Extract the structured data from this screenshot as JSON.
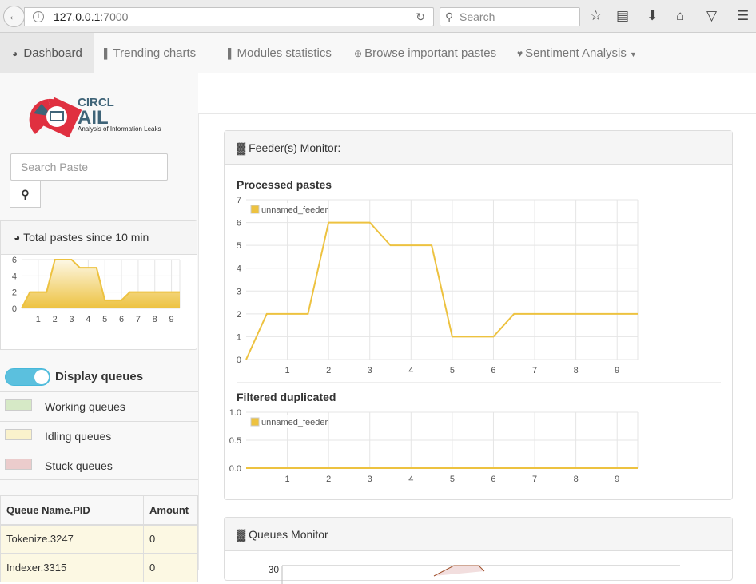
{
  "browser": {
    "url_host": "127.0.0.1",
    "url_port": ":7000",
    "search_placeholder": "Search"
  },
  "nav": {
    "items": [
      {
        "label": "Dashboard",
        "icon": "dashboard-icon"
      },
      {
        "label": "Trending charts",
        "icon": "bar-chart-icon"
      },
      {
        "label": "Modules statistics",
        "icon": "bar-chart-icon"
      },
      {
        "label": "Browse important pastes",
        "icon": "search-plus-icon"
      },
      {
        "label": "Sentiment Analysis",
        "icon": "heart-icon"
      }
    ]
  },
  "sidebar": {
    "logo": {
      "brand": "CIRCL",
      "name": "AIL",
      "tagline": "Analysis of Information Leaks"
    },
    "search_placeholder": "Search Paste",
    "total_title": "Total pastes since 10 min",
    "display_queues": "Display queues",
    "legend": [
      {
        "label": "Working queues",
        "color": "#d6e9c6"
      },
      {
        "label": "Idling queues",
        "color": "#faf2cc"
      },
      {
        "label": "Stuck queues",
        "color": "#ebcccc"
      }
    ],
    "table": {
      "headers": [
        "Queue Name.PID",
        "Amount"
      ],
      "rows": [
        [
          "Tokenize.3247",
          "0"
        ],
        [
          "Indexer.3315",
          "0"
        ]
      ]
    }
  },
  "main": {
    "feeder_title": "Feeder(s) Monitor:",
    "queues_title": "Queues Monitor",
    "queues_top_tick": "30"
  },
  "colors": {
    "series": "#edc240",
    "accent": "#5bc0de"
  },
  "chart_data": [
    {
      "type": "area",
      "title": "Total pastes since 10 min",
      "x": [
        0,
        0.5,
        1,
        1.5,
        2,
        2.5,
        3,
        3.5,
        4,
        4.5,
        5,
        5.5,
        6,
        6.5,
        7,
        7.5,
        8,
        8.5,
        9,
        9.5
      ],
      "values": [
        0,
        2,
        2,
        2,
        6,
        6,
        6,
        5,
        5,
        5,
        1,
        1,
        1,
        2,
        2,
        2,
        2,
        2,
        2,
        2
      ],
      "yticks": [
        "0",
        "2",
        "4",
        "6"
      ],
      "xticks": [
        "1",
        "2",
        "3",
        "4",
        "5",
        "6",
        "7",
        "8",
        "9"
      ],
      "ylim": [
        0,
        6
      ]
    },
    {
      "type": "line",
      "title": "Processed pastes",
      "series": [
        {
          "name": "unnamed_feeder",
          "values": [
            0,
            2,
            2,
            2,
            6,
            6,
            6,
            5,
            5,
            5,
            1,
            1,
            1,
            2,
            2,
            2,
            2,
            2,
            2,
            2
          ]
        }
      ],
      "x": [
        0,
        0.5,
        1,
        1.5,
        2,
        2.5,
        3,
        3.5,
        4,
        4.5,
        5,
        5.5,
        6,
        6.5,
        7,
        7.5,
        8,
        8.5,
        9,
        9.5
      ],
      "yticks": [
        "0",
        "1",
        "2",
        "3",
        "4",
        "5",
        "6",
        "7"
      ],
      "xticks": [
        "1",
        "2",
        "3",
        "4",
        "5",
        "6",
        "7",
        "8",
        "9"
      ],
      "ylim": [
        0,
        7
      ],
      "legend": "top-left",
      "grid": true
    },
    {
      "type": "line",
      "title": "Filtered duplicated",
      "series": [
        {
          "name": "unnamed_feeder",
          "values": [
            0,
            0,
            0,
            0,
            0,
            0,
            0,
            0,
            0,
            0,
            0,
            0,
            0,
            0,
            0,
            0,
            0,
            0,
            0,
            0
          ]
        }
      ],
      "x": [
        0,
        0.5,
        1,
        1.5,
        2,
        2.5,
        3,
        3.5,
        4,
        4.5,
        5,
        5.5,
        6,
        6.5,
        7,
        7.5,
        8,
        8.5,
        9,
        9.5
      ],
      "yticks": [
        "0.0",
        "0.5",
        "1.0"
      ],
      "xticks": [
        "1",
        "2",
        "3",
        "4",
        "5",
        "6",
        "7",
        "8",
        "9"
      ],
      "ylim": [
        0,
        1
      ],
      "legend": "top-left",
      "grid": true
    }
  ]
}
